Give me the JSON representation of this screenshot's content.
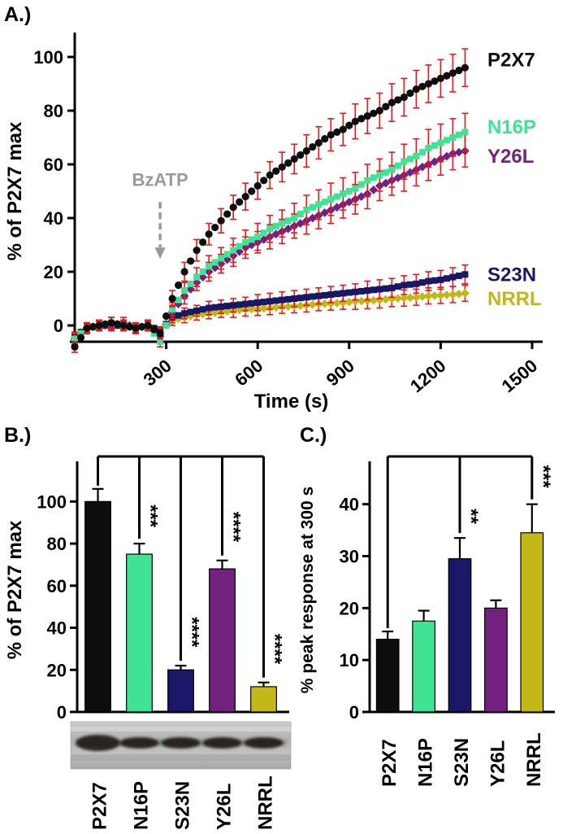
{
  "figure": {
    "panel_a_label": "A.)",
    "panel_b_label": "B.)",
    "panel_c_label": "C.)"
  },
  "palette": {
    "P2X7": "#0d0d0d",
    "N16P": "#3fe394",
    "Y26L": "#73217e",
    "S23N": "#1a1766",
    "NRRL": "#c4b718",
    "error_bar": "#f01414",
    "annotation": "#999999",
    "axis": "#000000",
    "blot_band": "#241a12"
  },
  "chart_data": [
    {
      "id": "timecourse",
      "type": "line",
      "xlabel": "Time (s)",
      "ylabel": "% of P2X7 max",
      "xlim": [
        0,
        1500
      ],
      "ylim": [
        -14,
        112
      ],
      "xticks": [
        300,
        600,
        900,
        1200,
        1500
      ],
      "yticks": [
        0,
        20,
        40,
        60,
        80,
        100
      ],
      "annotation": {
        "text": "BzATP",
        "x": 280,
        "text_y": 52,
        "arrow_from_y": 46,
        "arrow_to_y": 29
      },
      "x": [
        0,
        40,
        80,
        120,
        160,
        200,
        240,
        280,
        320,
        360,
        400,
        440,
        480,
        520,
        560,
        600,
        640,
        680,
        720,
        760,
        800,
        840,
        880,
        920,
        960,
        1000,
        1040,
        1080,
        1120,
        1160,
        1200,
        1240,
        1280
      ],
      "series": [
        {
          "name": "P2X7",
          "marker": "circle",
          "label_y": 99,
          "values": [
            -8,
            -1,
            0,
            1,
            0,
            -1,
            0,
            -3,
            10,
            20,
            28,
            34,
            39,
            44,
            48,
            52,
            56,
            59,
            62,
            65,
            68,
            71,
            73,
            76,
            78,
            80,
            83,
            85,
            88,
            90,
            92,
            94,
            96
          ],
          "err": [
            2,
            2,
            2,
            2,
            2,
            2,
            2,
            2,
            3,
            3.5,
            4,
            4,
            4.5,
            4.5,
            5,
            5,
            5,
            5.5,
            5.5,
            6,
            6,
            6,
            6,
            6.5,
            6.5,
            6.5,
            7,
            7,
            7,
            7,
            7,
            7,
            7
          ]
        },
        {
          "name": "N16P",
          "marker": "square",
          "label_y": 74,
          "values": [
            -5,
            -1,
            0,
            1,
            0,
            -1,
            0,
            -6,
            6,
            13,
            18,
            22,
            25,
            28,
            31,
            33,
            36,
            38,
            40,
            43,
            45,
            47,
            49,
            51,
            54,
            56,
            58,
            61,
            63,
            66,
            68,
            70,
            72
          ],
          "err": [
            2,
            2,
            2,
            2,
            2,
            2,
            2,
            2,
            2.5,
            3,
            3.5,
            4,
            4,
            4.5,
            4.5,
            5,
            5,
            5,
            5.5,
            5.5,
            5.5,
            6,
            6,
            6,
            6,
            6,
            6.5,
            6.5,
            6.5,
            7,
            7,
            7,
            7
          ]
        },
        {
          "name": "Y26L",
          "marker": "diamond",
          "label_y": 63,
          "values": [
            -5,
            -1,
            0,
            0,
            1,
            -1,
            0,
            -4,
            5,
            11,
            16,
            20,
            23,
            26,
            29,
            31,
            33,
            35,
            37,
            39,
            41,
            43,
            45,
            47,
            49,
            52,
            54,
            56,
            58,
            60,
            62,
            64,
            65
          ],
          "err": [
            2,
            2,
            2,
            2,
            2,
            2,
            2,
            2,
            2.5,
            3,
            3,
            3.5,
            3.5,
            4,
            4,
            4,
            4.5,
            4.5,
            4.5,
            5,
            5,
            5,
            5,
            5.5,
            5.5,
            5.5,
            5.5,
            6,
            6,
            6,
            6,
            6,
            6
          ]
        },
        {
          "name": "S23N",
          "marker": "square",
          "label_y": 19,
          "values": [
            -4,
            -1,
            0,
            0,
            0,
            -1,
            0,
            -2,
            3,
            4.5,
            5.5,
            6.5,
            7,
            7.5,
            8,
            8.5,
            9,
            9.5,
            10,
            10.5,
            11,
            11.5,
            12,
            12.5,
            13,
            13.5,
            14,
            15,
            15.5,
            16.5,
            17,
            18,
            19
          ],
          "err": [
            1.5,
            1.5,
            1.5,
            1.5,
            1.5,
            1.5,
            1.5,
            1.5,
            2,
            2,
            2,
            2.5,
            2.5,
            2.5,
            2.5,
            3,
            3,
            3,
            3,
            3,
            3,
            3,
            3,
            3,
            3.5,
            3.5,
            3.5,
            3.5,
            3.5,
            3.5,
            3.5,
            3.5,
            3.5
          ]
        },
        {
          "name": "NRRL",
          "marker": "diamond",
          "label_y": 10,
          "values": [
            -4,
            -1,
            0,
            0,
            0,
            -1,
            0,
            -2,
            2,
            3,
            4,
            4.5,
            5,
            5.5,
            6,
            6.2,
            6.5,
            7,
            7.2,
            7.5,
            8,
            8.2,
            8.5,
            9,
            9.2,
            9.5,
            10,
            10.2,
            10.5,
            11,
            11.2,
            11.5,
            12
          ],
          "err": [
            1.5,
            1.5,
            1.5,
            1.5,
            1.5,
            1.5,
            1.5,
            1.5,
            2,
            2,
            2,
            2,
            2,
            2.5,
            2.5,
            2.5,
            2.5,
            2.5,
            2.5,
            2.5,
            2.5,
            2.5,
            2.5,
            3,
            3,
            3,
            3,
            3,
            3,
            3,
            3,
            3,
            3
          ]
        }
      ]
    },
    {
      "id": "bar_max",
      "type": "bar",
      "ylabel": "% of P2X7 max",
      "ylim": [
        0,
        116
      ],
      "yticks": [
        0,
        20,
        40,
        60,
        80,
        100
      ],
      "categories": [
        "P2X7",
        "N16P",
        "S23N",
        "Y26L",
        "NRRL"
      ],
      "values": [
        100,
        75,
        20,
        68,
        12
      ],
      "errors": [
        6,
        5,
        2,
        4,
        2
      ],
      "significance": [
        null,
        "***",
        "****",
        "****",
        "****"
      ]
    },
    {
      "id": "bar_peak",
      "type": "bar",
      "ylabel": "% peak response at 300 s",
      "ylim": [
        0,
        47
      ],
      "yticks": [
        0,
        10,
        20,
        30,
        40
      ],
      "categories": [
        "P2X7",
        "N16P",
        "S23N",
        "Y26L",
        "NRRL"
      ],
      "values": [
        14,
        17.5,
        29.5,
        20,
        34.5
      ],
      "errors": [
        1.5,
        2,
        4,
        1.5,
        5.5
      ],
      "significance": [
        null,
        null,
        "**",
        null,
        "***"
      ]
    }
  ],
  "blot": {
    "lanes": [
      "P2X7",
      "N16P",
      "S23N",
      "Y26L",
      "NRRL"
    ]
  }
}
